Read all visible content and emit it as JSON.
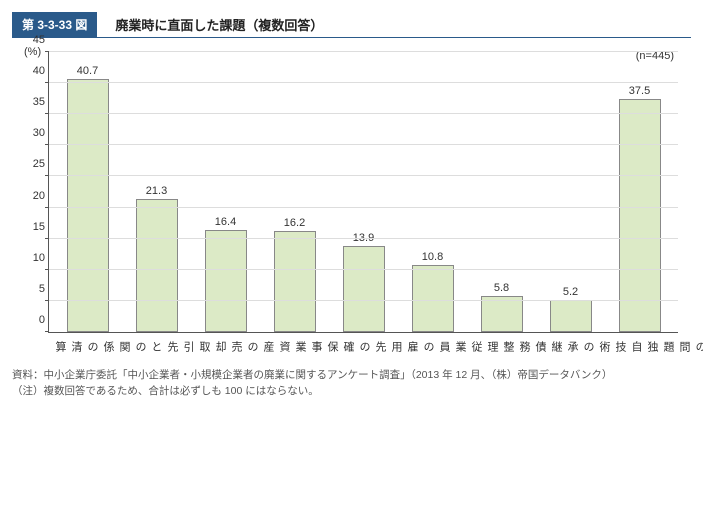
{
  "header": {
    "figure_number": "第 3-3-33 図",
    "title": "廃業時に直面した課題（複数回答）"
  },
  "chart": {
    "type": "bar",
    "y_unit_label": "(%)",
    "n_label": "(n=445)",
    "ylim": [
      0,
      45
    ],
    "ytick_step": 5,
    "yticks": [
      0,
      5,
      10,
      15,
      20,
      25,
      30,
      35,
      40,
      45
    ],
    "bar_color": "#dceac6",
    "bar_border_color": "#888888",
    "grid_color": "#dddddd",
    "axis_color": "#555555",
    "background_color": "#ffffff",
    "label_fontsize": 11,
    "value_fontsize": 11,
    "categories": [
      "取引先との関係の清算",
      "事業資産の売却",
      "従業員の雇用先の確保",
      "債務整理",
      "独自技術の承継",
      "個人保証の問題",
      "連帯保証の問題",
      "地域経済への影響の軽減",
      "その他"
    ],
    "values": [
      40.7,
      21.3,
      16.4,
      16.2,
      13.9,
      10.8,
      5.8,
      5.2,
      37.5
    ]
  },
  "footnotes": {
    "line1": "資料：中小企業庁委託「中小企業者・小規模企業者の廃業に関するアンケート調査」（2013 年 12 月、（株）帝国データバンク）",
    "line2": "（注）複数回答であるため、合計は必ずしも 100 にはならない。"
  }
}
